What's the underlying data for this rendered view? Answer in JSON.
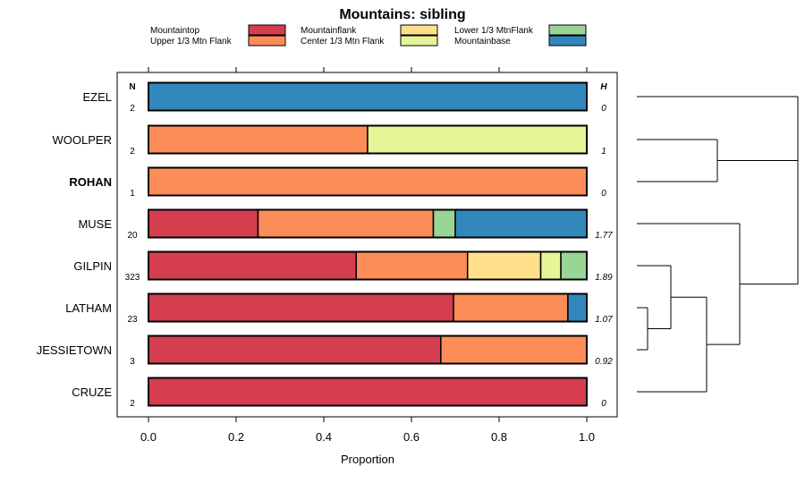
{
  "chart_data": {
    "type": "bar",
    "orientation": "horizontal",
    "stacked": true,
    "title": "Mountains: sibling",
    "xlabel": "Proportion",
    "ylabel": "",
    "xlim": [
      0,
      1
    ],
    "xticks": [
      "0.0",
      "0.2",
      "0.4",
      "0.6",
      "0.8",
      "1.0"
    ],
    "xtick_values": [
      0,
      0.2,
      0.4,
      0.6,
      0.8,
      1.0
    ],
    "n_header": "N",
    "h_header": "H",
    "legend_position": "top",
    "legend": [
      {
        "name": "Mountaintop",
        "color": "#d53e4f"
      },
      {
        "name": "Upper 1/3 Mtn Flank",
        "color": "#fc8d59"
      },
      {
        "name": "Mountainflank",
        "color": "#fee08b"
      },
      {
        "name": "Center 1/3 Mtn Flank",
        "color": "#e6f598"
      },
      {
        "name": "Lower 1/3 MtnFlank",
        "color": "#99d594"
      },
      {
        "name": "Mountainbase",
        "color": "#3288bd"
      }
    ],
    "categories": [
      "EZEL",
      "WOOLPER",
      "ROHAN",
      "MUSE",
      "GILPIN",
      "LATHAM",
      "JESSIETOWN",
      "CRUZE"
    ],
    "highlight_category": "ROHAN",
    "n": [
      "2",
      "2",
      "1",
      "20",
      "323",
      "23",
      "3",
      "2"
    ],
    "h": [
      "0",
      "1",
      "0",
      "1.77",
      "1.89",
      "1.07",
      "0.92",
      "0"
    ],
    "series": [
      {
        "name": "Mountaintop",
        "values": [
          0,
          0,
          0,
          0.25,
          0.474,
          0.696,
          0.667,
          1
        ]
      },
      {
        "name": "Upper 1/3 Mtn Flank",
        "values": [
          0,
          0.5,
          1,
          0.4,
          0.254,
          0.261,
          0.333,
          0
        ]
      },
      {
        "name": "Mountainflank",
        "values": [
          0,
          0,
          0,
          0,
          0.167,
          0,
          0,
          0
        ]
      },
      {
        "name": "Center 1/3 Mtn Flank",
        "values": [
          0,
          0.5,
          0,
          0,
          0.046,
          0,
          0,
          0
        ]
      },
      {
        "name": "Lower 1/3 MtnFlank",
        "values": [
          0,
          0,
          0,
          0.05,
          0.059,
          0,
          0,
          0
        ]
      },
      {
        "name": "Mountainbase",
        "values": [
          1,
          0,
          0,
          0.3,
          0,
          0.043,
          0,
          0
        ]
      }
    ],
    "dendrogram": {
      "description": "hierarchical clustering of rows",
      "merges": [
        {
          "a": "LATHAM",
          "b": "JESSIETOWN",
          "height": 0.1
        },
        {
          "a": "LATHAM+JESSIETOWN",
          "b": "GILPIN",
          "height": 0.25
        },
        {
          "a": "LATHAM+JESSIETOWN+GILPIN",
          "b": "CRUZE",
          "height": 0.4
        },
        {
          "a": "WOOLPER",
          "b": "ROHAN",
          "height": 0.5
        },
        {
          "a": "GILPIN+LATHAM+JESSIETOWN+CRUZE",
          "b": "MUSE",
          "height": 0.6
        },
        {
          "a": "WOOLPER+ROHAN",
          "b": "EZEL",
          "height": 1.0
        },
        {
          "a": "EZEL+WOOLPER+ROHAN",
          "b": "MUSE+GILPIN+LATHAM+JESSIETOWN+CRUZE",
          "height": 1.0
        }
      ]
    }
  }
}
